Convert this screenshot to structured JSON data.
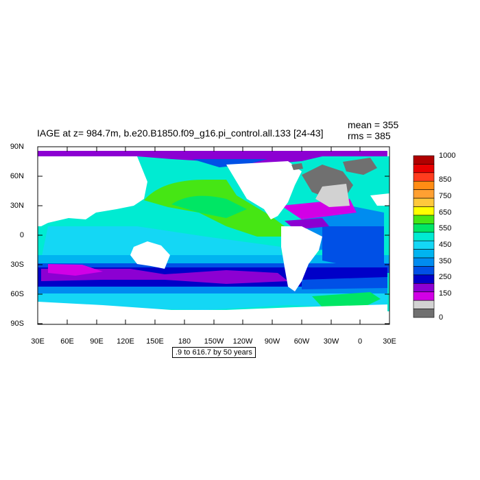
{
  "title": "IAGE at z= 984.7m, b.e20.B1850.f09_g16.pi_control.all.133 [24-43]",
  "stats": {
    "mean": "mean = 355",
    "rms": "rms = 385"
  },
  "contour_info": ".9 to 616.7 by 50 years",
  "lat_labels": [
    "90N",
    "60N",
    "30N",
    "0",
    "30S",
    "60S",
    "90S"
  ],
  "lon_labels": [
    "30E",
    "60E",
    "90E",
    "120E",
    "150E",
    "180",
    "150W",
    "120W",
    "90W",
    "60W",
    "30W",
    "0",
    "30E"
  ],
  "colorbar": {
    "labels": [
      "1000",
      "850",
      "750",
      "650",
      "550",
      "450",
      "350",
      "250",
      "150",
      "0"
    ],
    "colors": [
      "#b00000",
      "#e80000",
      "#ff3c1e",
      "#ff8c14",
      "#ffa032",
      "#ffc83c",
      "#ffff00",
      "#46e614",
      "#00e664",
      "#00ebd2",
      "#14d7f5",
      "#00b4f0",
      "#008cf0",
      "#0050e6",
      "#0000c8",
      "#8c00d2",
      "#d200e6",
      "#d2d2d2",
      "#707070"
    ]
  },
  "map_colors": {
    "land": "#ffffff",
    "missing": "#707070",
    "light_gray": "#d2d2d2"
  }
}
